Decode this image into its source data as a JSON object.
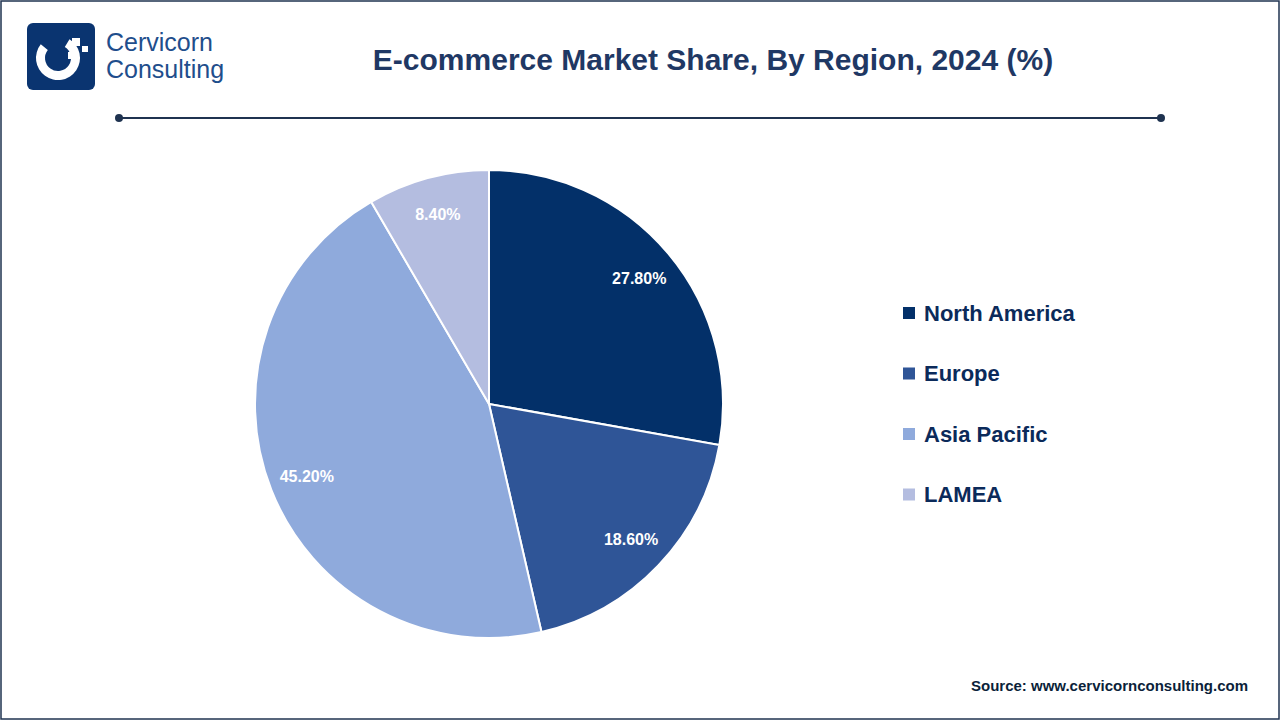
{
  "logo_text": [
    "Cervicorn",
    "Consulting"
  ],
  "chart_data": {
    "type": "pie",
    "title": "E-commerce Market Share, By Region, 2024 (%)",
    "categories": [
      "North America",
      "Europe",
      "Asia Pacific",
      "LAMEA"
    ],
    "values": [
      27.8,
      18.6,
      45.2,
      8.4
    ],
    "value_labels": [
      "27.80%",
      "18.60%",
      "45.20%",
      "8.40%"
    ],
    "colors": [
      "#033069",
      "#2f5597",
      "#8faadc",
      "#b4bde0"
    ],
    "data_labels": true,
    "legend": "right",
    "source": "Source: www.cervicornconsulting.com"
  }
}
